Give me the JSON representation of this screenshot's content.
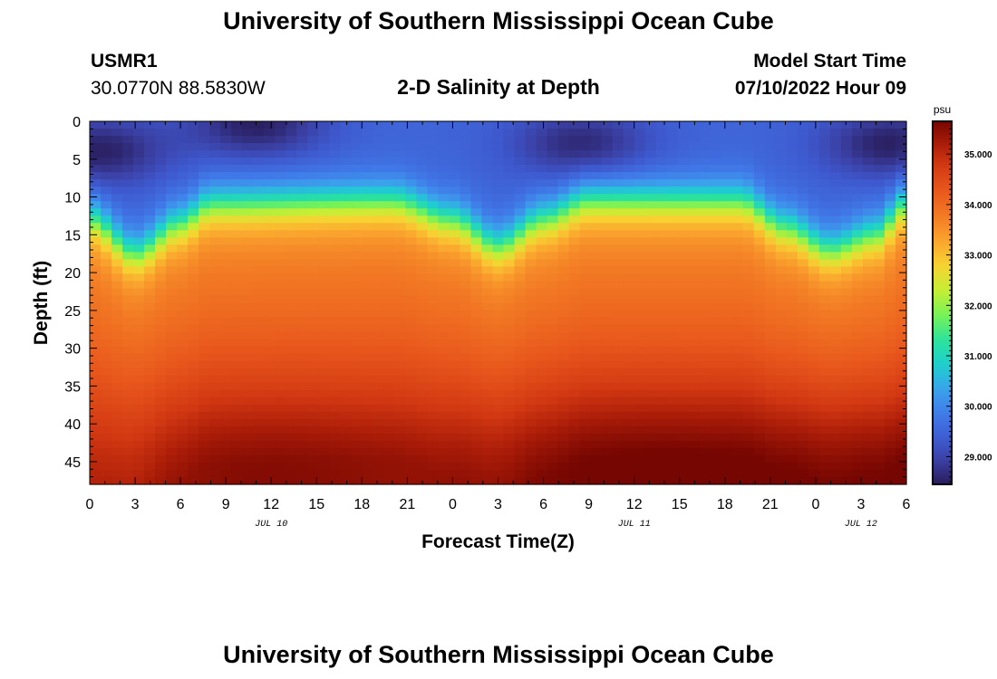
{
  "page": {
    "title": "University of Southern Mississippi Ocean Cube",
    "footer_title": "University of Southern Mississippi Ocean Cube",
    "station": "USMR1",
    "coordinates": "30.0770N  88.5830W",
    "plot_title": "2-D Salinity at Depth",
    "model_start_label": "Model Start Time",
    "model_start_value": "07/10/2022 Hour 09"
  },
  "chart_data": {
    "type": "heatmap",
    "title": "2-D Salinity at Depth",
    "xlabel": "Forecast Time(Z)",
    "ylabel": "Depth (ft)",
    "x_range": [
      0,
      54
    ],
    "y_range": [
      0,
      48
    ],
    "x_ticks": [
      0,
      3,
      6,
      9,
      12,
      15,
      18,
      21,
      24,
      27,
      30,
      33,
      36,
      39,
      42,
      45,
      48,
      51,
      54
    ],
    "x_tick_labels": [
      "0",
      "3",
      "6",
      "9",
      "12",
      "15",
      "18",
      "21",
      "0",
      "3",
      "6",
      "9",
      "12",
      "15",
      "18",
      "21",
      "0",
      "3",
      "6"
    ],
    "y_ticks": [
      0,
      5,
      10,
      15,
      20,
      25,
      30,
      35,
      40,
      45
    ],
    "y_tick_labels": [
      "0",
      "5",
      "10",
      "15",
      "20",
      "25",
      "30",
      "35",
      "40",
      "45"
    ],
    "date_labels": [
      {
        "text": "JUL 10",
        "x": 12
      },
      {
        "text": "JUL 11",
        "x": 36
      },
      {
        "text": "JUL 12",
        "x": 51
      }
    ],
    "colorbar": {
      "units": "psu",
      "min": 28.45,
      "max": 35.65,
      "ticks": [
        29.0,
        30.0,
        31.0,
        32.0,
        33.0,
        34.0,
        35.0
      ],
      "tick_labels": [
        "29.000",
        "30.000",
        "31.000",
        "32.000",
        "33.000",
        "34.000",
        "35.000"
      ]
    },
    "halocline_depth_ft": [
      {
        "hour": 0,
        "depth": 13
      },
      {
        "hour": 3,
        "depth": 17.5
      },
      {
        "hour": 6,
        "depth": 13.5
      },
      {
        "hour": 8,
        "depth": 11
      },
      {
        "hour": 20,
        "depth": 10.5
      },
      {
        "hour": 24,
        "depth": 13
      },
      {
        "hour": 27,
        "depth": 16.5
      },
      {
        "hour": 30,
        "depth": 13
      },
      {
        "hour": 33,
        "depth": 10.5
      },
      {
        "hour": 43,
        "depth": 10.5
      },
      {
        "hour": 46,
        "depth": 14
      },
      {
        "hour": 49,
        "depth": 17
      },
      {
        "hour": 52,
        "depth": 15
      },
      {
        "hour": 54,
        "depth": 11
      }
    ],
    "surface_salinity_psu": 29.5,
    "fresh_minimum_psu": 28.5,
    "fresh_cores": [
      {
        "hour": 0.5,
        "depth": 4,
        "psu": 28.5
      },
      {
        "hour": 11,
        "depth": 0.5,
        "psu": 28.5
      },
      {
        "hour": 32.5,
        "depth": 3,
        "psu": 28.6
      },
      {
        "hour": 53,
        "depth": 3,
        "psu": 28.5
      }
    ],
    "deep_salinity_psu": 34.7,
    "bottom_maximum_psu": 35.6,
    "saline_cores": [
      {
        "hour": 11,
        "depth": 47,
        "psu": 35.5
      },
      {
        "hour": 35,
        "depth": 47,
        "psu": 35.6
      },
      {
        "hour": 54,
        "depth": 47.5,
        "psu": 35.6
      }
    ]
  }
}
